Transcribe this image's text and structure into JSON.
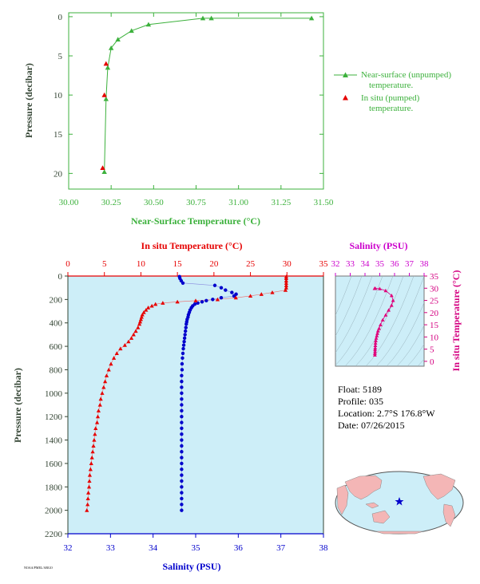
{
  "colors": {
    "green": "#3cb13c",
    "red": "#e60000",
    "blue": "#0000cc",
    "magenta": "#d40080",
    "panel_bg": "#cdeef8",
    "axis_text": "#334433"
  },
  "info": {
    "float": "Float: 5189",
    "profile": "Profile: 035",
    "location": "Location: 2.7°S 176.8°W",
    "date": "Date: 07/26/2015"
  },
  "footer_code": "NOAA/PMEL/ARGO",
  "map_marker_icon": "star-icon",
  "chart_data": [
    {
      "type": "line",
      "xlabel": "Near-Surface Temperature (°C)",
      "ylabel": "Pressure (decibar)",
      "xlim": [
        30.0,
        31.5
      ],
      "ylim": [
        22,
        -0.5
      ],
      "xticks": [
        "30.00",
        "30.25",
        "30.50",
        "30.75",
        "31.00",
        "31.25",
        "31.50"
      ],
      "yticks": [
        "0",
        "5",
        "10",
        "15",
        "20"
      ],
      "legend_position": "right",
      "series": [
        {
          "name": "Near-surface (unpumped) temperature.",
          "marker": "triangle",
          "line": true,
          "x": [
            31.43,
            30.84,
            30.79,
            30.47,
            30.37,
            30.29,
            30.25,
            30.23,
            30.22,
            30.21
          ],
          "y": [
            0.2,
            0.2,
            0.2,
            1.0,
            1.8,
            2.9,
            4.0,
            6.5,
            10.5,
            19.8
          ]
        },
        {
          "name": "In situ (pumped) temperature.",
          "marker": "triangle",
          "line": false,
          "x": [
            30.22,
            30.21,
            30.2
          ],
          "y": [
            6.0,
            10.0,
            19.3
          ]
        }
      ]
    },
    {
      "type": "line",
      "title_top": "In situ Temperature (°C)",
      "xlabel_bottom": "Salinity (PSU)",
      "ylabel": "Pressure (decibar)",
      "temp_lim": [
        0,
        35
      ],
      "sal_lim": [
        32,
        38
      ],
      "pres_lim": [
        0,
        2200
      ],
      "temp_ticks": [
        "0",
        "5",
        "10",
        "15",
        "20",
        "25",
        "30",
        "35"
      ],
      "sal_ticks": [
        "32",
        "33",
        "34",
        "35",
        "36",
        "37",
        "38"
      ],
      "pres_ticks": [
        "0",
        "200",
        "400",
        "600",
        "800",
        "1000",
        "1200",
        "1400",
        "1600",
        "1800",
        "2000",
        "2200"
      ],
      "series": [
        {
          "name": "In situ Temperature",
          "marker": "triangle",
          "pressure": [
            5,
            20,
            40,
            60,
            80,
            100,
            120,
            140,
            155,
            170,
            185,
            200,
            210,
            220,
            230,
            240,
            255,
            270,
            290,
            310,
            330,
            350,
            370,
            390,
            410,
            440,
            470,
            500,
            530,
            560,
            590,
            620,
            660,
            700,
            750,
            800,
            850,
            900,
            950,
            1000,
            1050,
            1100,
            1150,
            1200,
            1250,
            1300,
            1350,
            1400,
            1450,
            1500,
            1550,
            1600,
            1650,
            1700,
            1750,
            1800,
            1850,
            1900,
            1950,
            2000
          ],
          "temperature": [
            29.9,
            29.9,
            29.9,
            29.9,
            29.9,
            29.9,
            29.8,
            28.0,
            26.5,
            25.0,
            23.0,
            20.5,
            17.5,
            15.0,
            13.0,
            12.0,
            11.5,
            11.0,
            10.7,
            10.4,
            10.2,
            10.1,
            10.0,
            9.9,
            9.8,
            9.6,
            9.3,
            9.0,
            8.7,
            8.3,
            7.8,
            7.2,
            6.7,
            6.3,
            5.9,
            5.6,
            5.3,
            5.1,
            4.9,
            4.7,
            4.5,
            4.4,
            4.2,
            4.1,
            4.0,
            3.8,
            3.7,
            3.6,
            3.5,
            3.4,
            3.3,
            3.2,
            3.1,
            3.0,
            2.95,
            2.9,
            2.8,
            2.75,
            2.7,
            2.6
          ]
        },
        {
          "name": "Salinity",
          "marker": "circle",
          "pressure": [
            5,
            20,
            40,
            60,
            80,
            100,
            120,
            140,
            155,
            170,
            185,
            200,
            210,
            220,
            230,
            240,
            255,
            270,
            290,
            310,
            330,
            350,
            370,
            390,
            410,
            440,
            470,
            500,
            530,
            560,
            590,
            620,
            660,
            700,
            750,
            800,
            850,
            900,
            950,
            1000,
            1050,
            1100,
            1150,
            1200,
            1250,
            1300,
            1350,
            1400,
            1450,
            1500,
            1550,
            1600,
            1650,
            1700,
            1750,
            1800,
            1850,
            1900,
            1950,
            2000
          ],
          "salinity": [
            34.62,
            34.63,
            34.66,
            34.7,
            35.45,
            35.6,
            35.7,
            35.85,
            35.95,
            35.9,
            35.6,
            35.4,
            35.25,
            35.15,
            35.05,
            34.98,
            34.93,
            34.9,
            34.87,
            34.85,
            34.83,
            34.82,
            34.8,
            34.79,
            34.78,
            34.77,
            34.76,
            34.75,
            34.74,
            34.73,
            34.72,
            34.71,
            34.7,
            34.69,
            34.68,
            34.68,
            34.67,
            34.67,
            34.67,
            34.67,
            34.67,
            34.67,
            34.67,
            34.67,
            34.67,
            34.67,
            34.67,
            34.67,
            34.67,
            34.67,
            34.67,
            34.67,
            34.67,
            34.67,
            34.67,
            34.67,
            34.67,
            34.67,
            34.67,
            34.67
          ]
        }
      ]
    },
    {
      "type": "scatter",
      "xlabel": "Salinity (PSU)",
      "ylabel": "In situ Temperature (°C)",
      "xlim": [
        32,
        38
      ],
      "ylim": [
        -2,
        35
      ],
      "xticks": [
        "32",
        "33",
        "34",
        "35",
        "36",
        "37",
        "38"
      ],
      "yticks": [
        "0",
        "5",
        "10",
        "15",
        "20",
        "25",
        "30",
        "35"
      ],
      "series": [
        {
          "name": "T-S",
          "marker": "triangle",
          "salinity": [
            34.65,
            34.7,
            35.0,
            35.4,
            35.8,
            35.9,
            35.8,
            35.6,
            35.4,
            35.2,
            35.05,
            34.95,
            34.88,
            34.84,
            34.8,
            34.76,
            34.73,
            34.71,
            34.7,
            34.69,
            34.68,
            34.68,
            34.67,
            34.67
          ],
          "temperature": [
            29.9,
            29.9,
            29.8,
            29.0,
            27.0,
            25.0,
            23.0,
            21.0,
            19.0,
            17.0,
            15.0,
            13.5,
            12.5,
            11.5,
            10.5,
            9.5,
            8.5,
            7.5,
            6.5,
            5.5,
            4.8,
            4.0,
            3.2,
            2.6
          ]
        }
      ]
    }
  ]
}
